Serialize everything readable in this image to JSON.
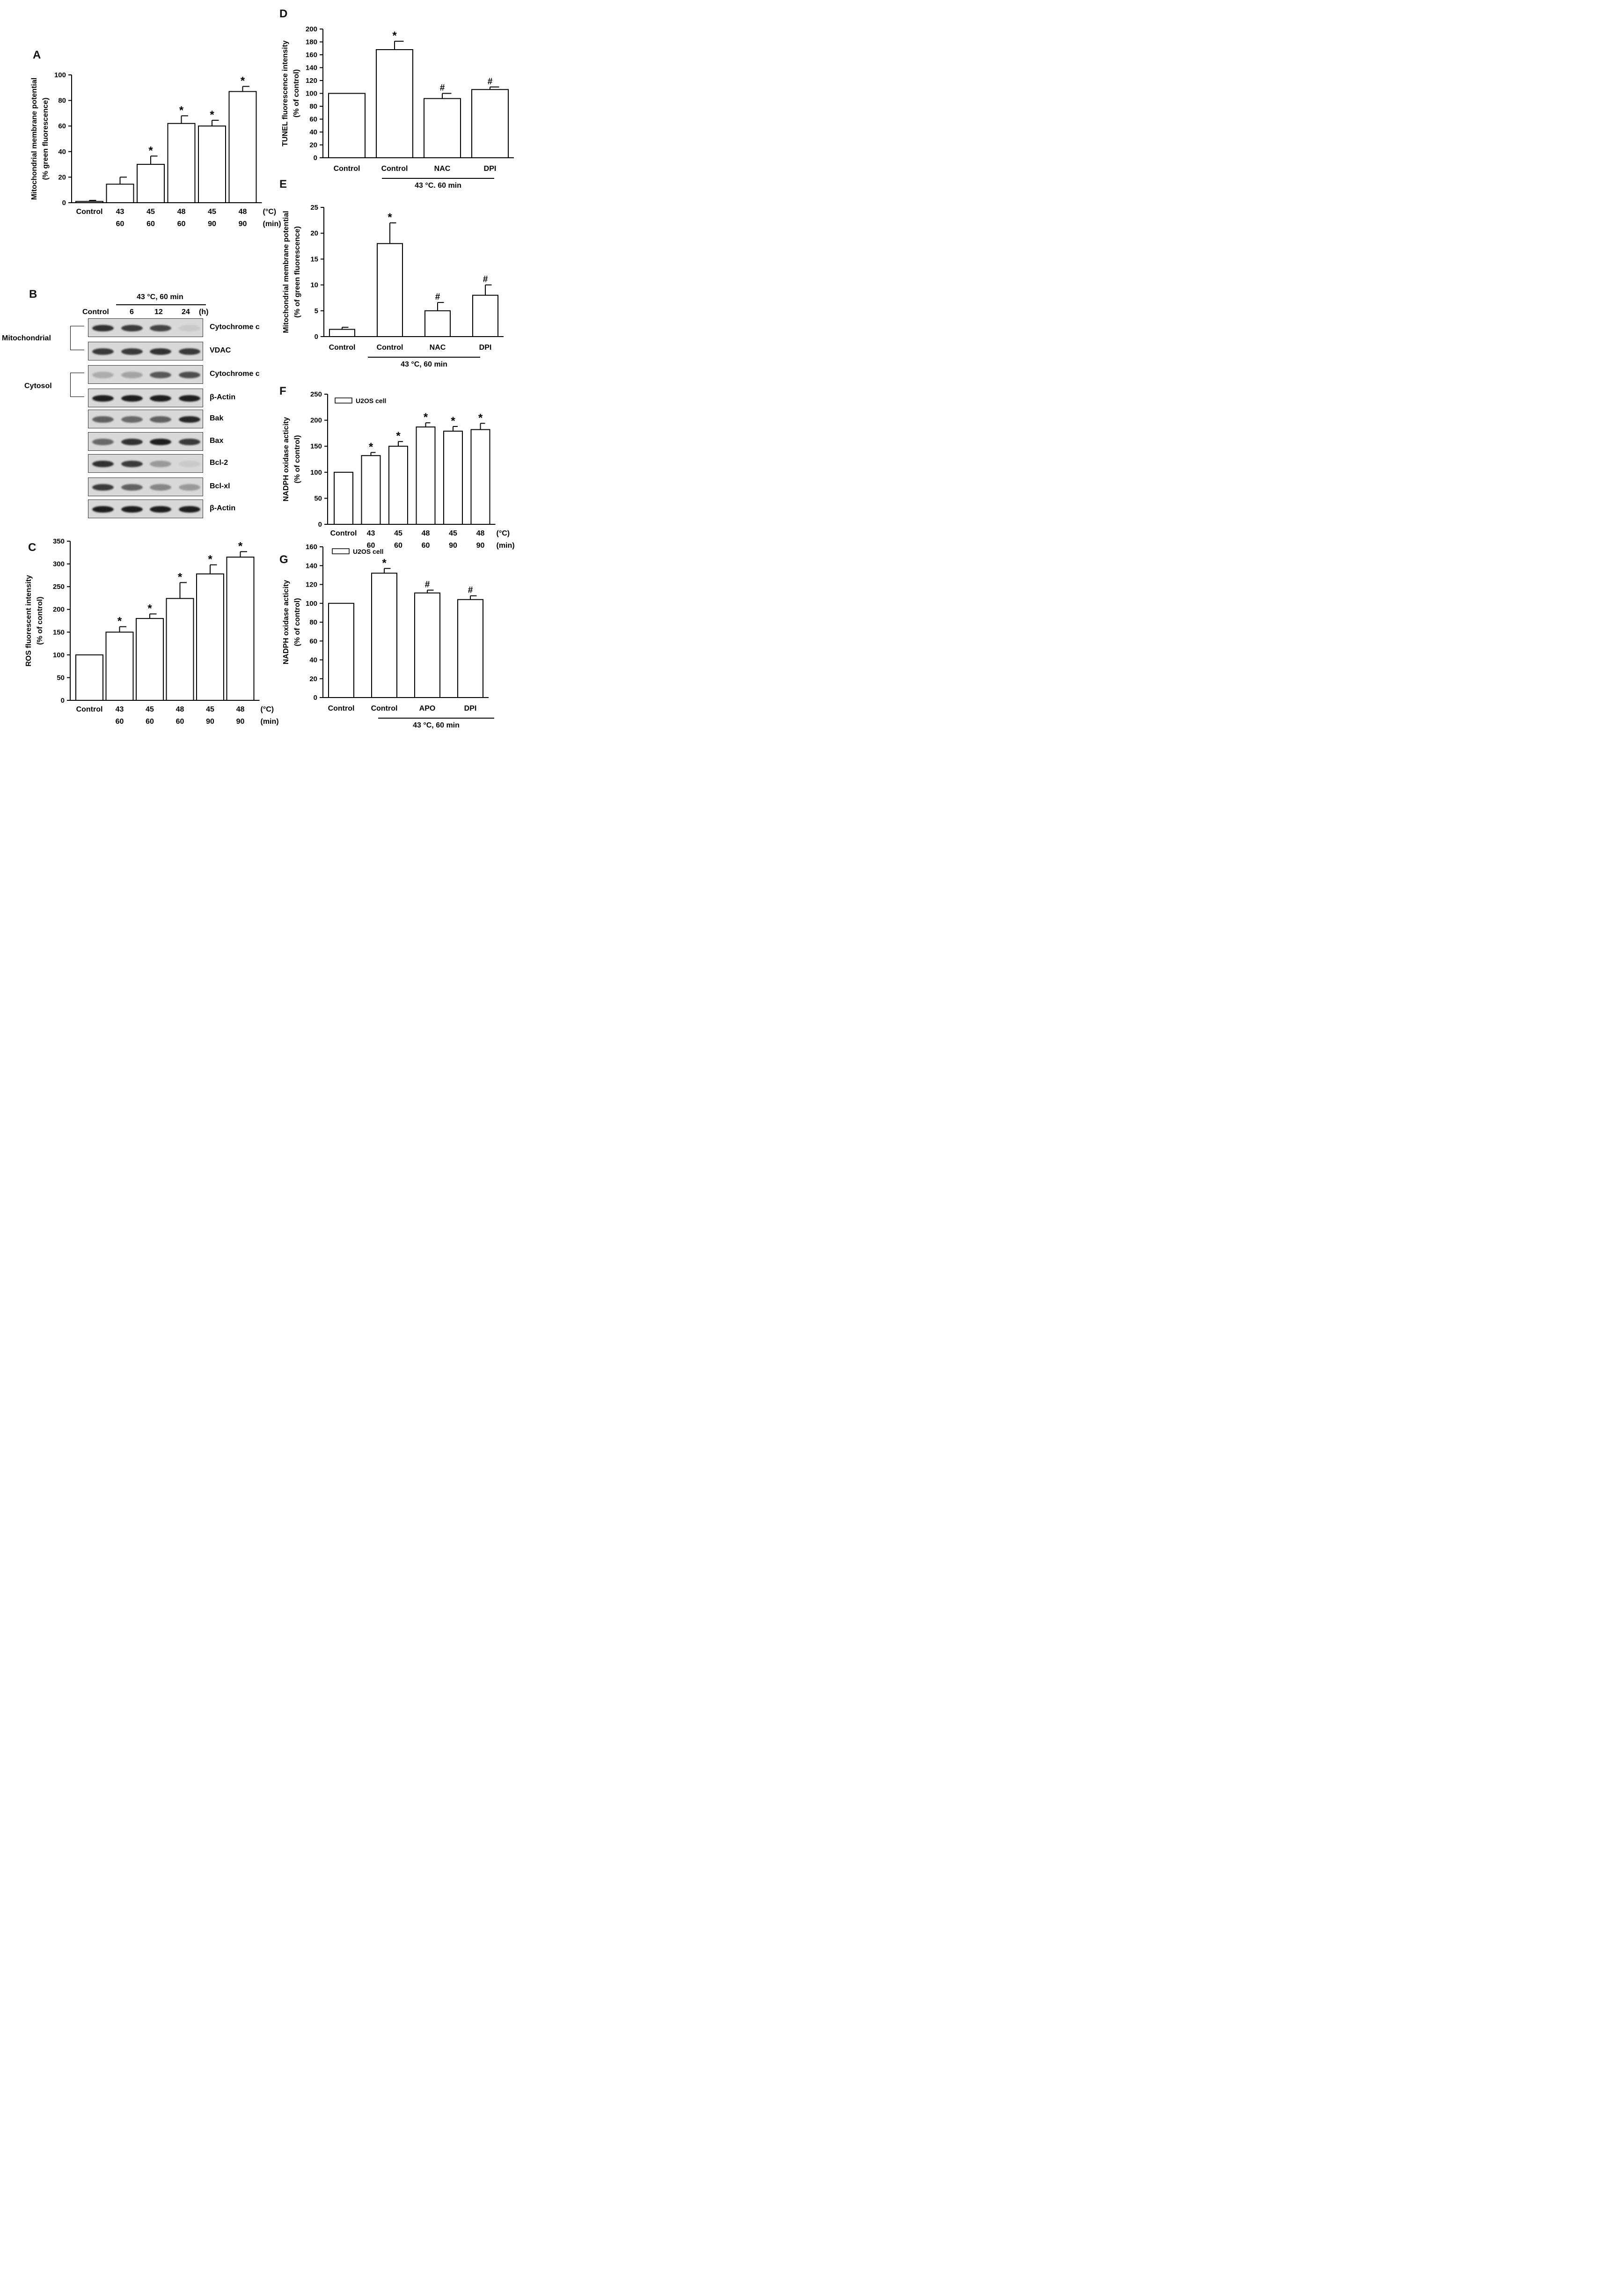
{
  "panels": {
    "a": "A",
    "b": "B",
    "c": "C",
    "d": "D",
    "e": "E",
    "f": "F",
    "g": "G"
  },
  "chart_data": [
    {
      "id": "A",
      "type": "bar",
      "ylabel": [
        "Mitochondrial membrane potential",
        "(%  green fluorescence)"
      ],
      "ylim": [
        0,
        100
      ],
      "yticks": [
        0,
        20,
        40,
        60,
        80,
        100
      ],
      "categories": [
        [
          "Control",
          ""
        ],
        [
          "43",
          "60"
        ],
        [
          "45",
          "60"
        ],
        [
          "48",
          "60"
        ],
        [
          "45",
          "90"
        ],
        [
          "48",
          "90"
        ]
      ],
      "unit_labels": [
        "(°C)",
        "(min)"
      ],
      "values": [
        1,
        14.5,
        30,
        62,
        60,
        87
      ],
      "errors": [
        0.8,
        5.5,
        6.5,
        6,
        4.5,
        4
      ],
      "annotations": [
        "",
        "",
        "*",
        "*",
        "*",
        "*"
      ],
      "bar_color": "#ffffff"
    },
    {
      "id": "C",
      "type": "bar",
      "ylabel": [
        "ROS fluorescent intensity",
        "(% of control)"
      ],
      "ylim": [
        0,
        350
      ],
      "yticks": [
        0,
        50,
        100,
        150,
        200,
        250,
        300,
        350
      ],
      "categories": [
        [
          "Control",
          ""
        ],
        [
          "43",
          "60"
        ],
        [
          "45",
          "60"
        ],
        [
          "48",
          "60"
        ],
        [
          "45",
          "90"
        ],
        [
          "48",
          "90"
        ]
      ],
      "unit_labels": [
        "(°C)",
        "(min)"
      ],
      "values": [
        100,
        150,
        180,
        224,
        278,
        315
      ],
      "errors": [
        0,
        12,
        10,
        35,
        20,
        12
      ],
      "annotations": [
        "",
        "*",
        "*",
        "*",
        "*",
        "*"
      ],
      "bar_color": "#ffffff"
    },
    {
      "id": "D",
      "type": "bar",
      "ylabel": [
        "TUNEL fluorescence intensity",
        "(% of control)"
      ],
      "ylim": [
        0,
        200
      ],
      "yticks": [
        0,
        20,
        40,
        60,
        80,
        100,
        120,
        140,
        160,
        180,
        200
      ],
      "categories": [
        "Control",
        "Control",
        "NAC",
        "DPI"
      ],
      "values": [
        100,
        168,
        92,
        106
      ],
      "errors": [
        0,
        13,
        8,
        4
      ],
      "annotations": [
        "",
        "*",
        "#",
        "#"
      ],
      "group_label": "43 °C. 60 min",
      "bar_color": "#ffffff"
    },
    {
      "id": "E",
      "type": "bar",
      "ylabel": [
        "Mitochondrial membrane potential",
        "(% of green fluorescence)"
      ],
      "ylim": [
        0,
        25
      ],
      "yticks": [
        0,
        5,
        10,
        15,
        20,
        25
      ],
      "categories": [
        "Control",
        "Control",
        "NAC",
        "DPI"
      ],
      "values": [
        1.4,
        18,
        5,
        8
      ],
      "errors": [
        0.4,
        4,
        1.6,
        2
      ],
      "annotations": [
        "",
        "*",
        "#",
        "#"
      ],
      "group_label": "43 °C, 60 min",
      "bar_color": "#ffffff"
    },
    {
      "id": "F",
      "type": "bar",
      "ylabel": [
        "NADPH oxidase acticity",
        "(% of control)"
      ],
      "ylim": [
        0,
        250
      ],
      "yticks": [
        0,
        50,
        100,
        150,
        200,
        250
      ],
      "categories": [
        [
          "Control",
          ""
        ],
        [
          "43",
          "60"
        ],
        [
          "45",
          "60"
        ],
        [
          "48",
          "60"
        ],
        [
          "45",
          "90"
        ],
        [
          "48",
          "90"
        ]
      ],
      "unit_labels": [
        "(°C)",
        "(min)"
      ],
      "values": [
        100,
        132,
        150,
        187,
        179,
        182
      ],
      "errors": [
        0,
        6,
        9,
        8,
        9,
        12
      ],
      "annotations": [
        "",
        "*",
        "*",
        "*",
        "*",
        "*"
      ],
      "legend": "U2OS cell",
      "bar_color": "#ffffff"
    },
    {
      "id": "G",
      "type": "bar",
      "ylabel": [
        "NADPH oxidase acticity",
        "(% of control)"
      ],
      "ylim": [
        0,
        160
      ],
      "yticks": [
        0,
        20,
        40,
        60,
        80,
        100,
        120,
        140,
        160
      ],
      "categories": [
        "Control",
        "Control",
        "APO",
        "DPI"
      ],
      "values": [
        100,
        132,
        111,
        104
      ],
      "errors": [
        0,
        5,
        3,
        4
      ],
      "annotations": [
        "",
        "*",
        "#",
        "#"
      ],
      "group_label": "43 °C, 60 min",
      "legend": "U2OS cell",
      "bar_color": "#ffffff"
    }
  ],
  "blot": {
    "treatment": "43 °C, 60 min",
    "lanes": [
      "Control",
      "6",
      "12",
      "24"
    ],
    "time_unit": "(h)",
    "fractions": {
      "mitochondrial": "Mitochondrial",
      "cytosol": "Cytosol"
    },
    "rows": [
      {
        "label": "Cytochrome c",
        "intensity": [
          0.85,
          0.8,
          0.75,
          0.05
        ]
      },
      {
        "label": "VDAC",
        "intensity": [
          0.8,
          0.8,
          0.85,
          0.8
        ]
      },
      {
        "label": "Cytochrome c",
        "intensity": [
          0.2,
          0.25,
          0.65,
          0.7
        ]
      },
      {
        "label": "β-Actin",
        "intensity": [
          0.95,
          0.95,
          0.95,
          0.95
        ]
      },
      {
        "label": "Bak",
        "intensity": [
          0.6,
          0.55,
          0.6,
          0.9
        ]
      },
      {
        "label": "Bax",
        "intensity": [
          0.55,
          0.85,
          0.95,
          0.8
        ]
      },
      {
        "label": "Bcl-2",
        "intensity": [
          0.85,
          0.8,
          0.3,
          0.05
        ]
      },
      {
        "label": "Bcl-xl",
        "intensity": [
          0.8,
          0.6,
          0.4,
          0.3
        ]
      },
      {
        "label": "β-Actin",
        "intensity": [
          0.95,
          0.95,
          0.95,
          0.95
        ]
      }
    ]
  }
}
